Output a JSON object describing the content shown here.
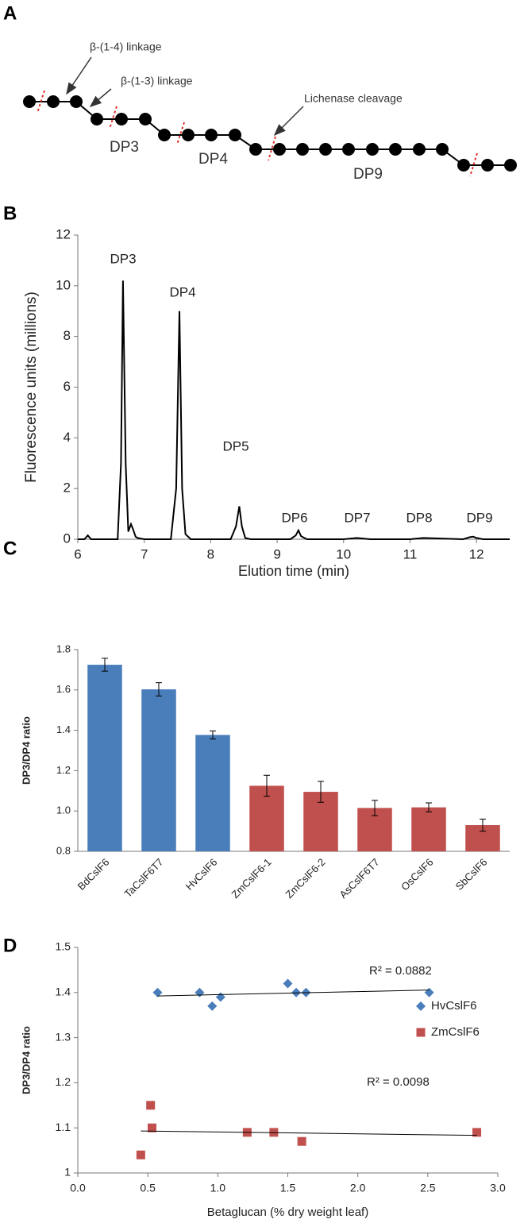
{
  "diagram": {
    "panel": "A",
    "labels": {
      "linkage14": "β-(1-4) linkage",
      "linkage13": "β-(1-3) linkage",
      "cleavage": "Lichenase cleavage",
      "dp3": "DP3",
      "dp4": "DP4",
      "dp9": "DP9"
    }
  },
  "chart_data": [
    {
      "type": "line",
      "panel": "B",
      "x_label": "Elution time (min)",
      "y_label": "Fluorescence units  (millions)",
      "x": [
        6.0,
        6.1,
        6.15,
        6.2,
        6.6,
        6.65,
        6.68,
        6.72,
        6.76,
        6.8,
        6.83,
        6.87,
        6.9,
        7.0,
        7.4,
        7.48,
        7.53,
        7.57,
        7.62,
        7.7,
        8.3,
        8.38,
        8.43,
        8.47,
        8.52,
        8.6,
        9.2,
        9.28,
        9.32,
        9.36,
        9.45,
        10.0,
        10.2,
        10.4,
        11.0,
        11.2,
        11.8,
        11.9,
        11.95,
        12.0,
        12.1,
        12.5
      ],
      "values": [
        0,
        0,
        0.15,
        0,
        0,
        3,
        10.2,
        3,
        0.3,
        0.6,
        0.4,
        0.1,
        0.05,
        0,
        0,
        2,
        9.0,
        2,
        0.2,
        0,
        0,
        0.5,
        1.3,
        0.5,
        0.05,
        0,
        0,
        0.15,
        0.35,
        0.12,
        0,
        0,
        0.05,
        0,
        0,
        0.05,
        0,
        0.08,
        0.1,
        0.05,
        0,
        0
      ],
      "color": "#000000",
      "peak_labels": [
        "DP3",
        "DP4",
        "DP5",
        "DP6",
        "DP7",
        "DP8",
        "DP9"
      ],
      "xlim": [
        6,
        12.5
      ],
      "xticks": [
        6,
        7,
        8,
        9,
        10,
        11,
        12
      ],
      "ylim": [
        0,
        12
      ],
      "yticks": [
        0,
        2,
        4,
        6,
        8,
        10,
        12
      ]
    },
    {
      "type": "bar",
      "panel": "C",
      "y_label": "DP3/DP4 ratio",
      "categories": [
        "BdCslF6",
        "TaCslF6T7",
        "HvCslF6",
        "ZmCslF6-1",
        "ZmCslF6-2",
        "AsCslF6T7",
        "OsCslF6",
        "SbCslF6"
      ],
      "values": [
        1.725,
        1.603,
        1.377,
        1.125,
        1.095,
        1.015,
        1.018,
        0.93
      ],
      "errors": [
        0.032,
        0.033,
        0.02,
        0.052,
        0.052,
        0.038,
        0.022,
        0.03
      ],
      "colors": [
        "#4a7ebb",
        "#4a7ebb",
        "#4a7ebb",
        "#c0504d",
        "#c0504d",
        "#c0504d",
        "#c0504d",
        "#c0504d"
      ],
      "ylim": [
        0.8,
        1.8
      ],
      "yticks": [
        0.8,
        {
          "value": 1.0,
          "label": "1.0"
        },
        1.2,
        1.4,
        1.6,
        1.8
      ]
    },
    {
      "type": "scatter",
      "panel": "D",
      "x_label": "Betaglucan (% dry weight leaf)",
      "y_label": "DP3/DP4 ratio",
      "series": [
        {
          "name": "HvCslF6",
          "color": "#4a7ebb",
          "marker": "diamond",
          "x": [
            0.57,
            0.87,
            0.96,
            1.02,
            1.5,
            1.56,
            1.63,
            2.51
          ],
          "values": [
            1.4,
            1.4,
            1.37,
            1.39,
            1.42,
            1.4,
            1.4,
            1.4
          ]
        },
        {
          "name": "ZmCslF6",
          "color": "#c0504d",
          "marker": "square",
          "x": [
            0.45,
            0.52,
            0.53,
            1.21,
            1.4,
            1.6,
            2.85
          ],
          "values": [
            1.04,
            1.15,
            1.1,
            1.09,
            1.09,
            1.07,
            1.09
          ]
        }
      ],
      "annotations": [
        "R² = 0.0882",
        "R² = 0.0098"
      ],
      "trendline": true,
      "legend": "right",
      "xlim": [
        0,
        3
      ],
      "xticks": [
        {
          "value": 0,
          "label": "0.0"
        },
        0.5,
        {
          "value": 1,
          "label": "1.0"
        },
        1.5,
        {
          "value": 2,
          "label": "2.0"
        },
        2.5,
        {
          "value": 3,
          "label": "3.0"
        }
      ],
      "ylim": [
        1,
        1.5
      ],
      "yticks": [
        1,
        1.1,
        1.2,
        1.3,
        1.4,
        1.5
      ]
    }
  ]
}
